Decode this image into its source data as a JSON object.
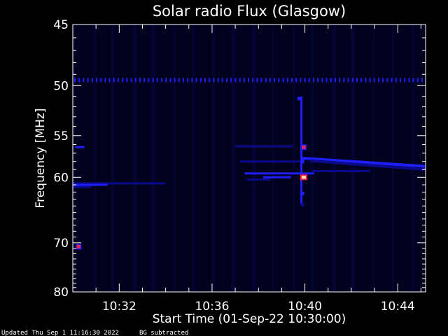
{
  "chart_data": {
    "type": "heatmap",
    "title": "Solar radio Flux (Glasgow)",
    "xlabel": "Start Time (01-Sep-22 10:30:00)",
    "ylabel": "Frequency [MHz]",
    "x_unit": "minutes after 10:30",
    "xlim": [
      0,
      15.2
    ],
    "ylim": [
      45,
      80
    ],
    "y_scale": "reciprocal",
    "x_ticks": [
      {
        "value": 2,
        "label": "10:32"
      },
      {
        "value": 6,
        "label": "10:36"
      },
      {
        "value": 10,
        "label": "10:40"
      },
      {
        "value": 14,
        "label": "10:44"
      }
    ],
    "y_ticks": [
      {
        "value": 45,
        "label": "45"
      },
      {
        "value": 50,
        "label": "50"
      },
      {
        "value": 55,
        "label": "55"
      },
      {
        "value": 60,
        "label": "60"
      },
      {
        "value": 70,
        "label": "70"
      },
      {
        "value": 80,
        "label": "80"
      }
    ],
    "y_minor_ticks": [
      46,
      47,
      48,
      49,
      51,
      52,
      53,
      54,
      56,
      57,
      58,
      59,
      61,
      62,
      63,
      64,
      65,
      66,
      67,
      68,
      69,
      71,
      72,
      73,
      74,
      75,
      76,
      77,
      78,
      79
    ],
    "x_minor_ticks": [
      1,
      3,
      4,
      5,
      7,
      8,
      9,
      11,
      12,
      13,
      15
    ],
    "colors": {
      "background": "#000000",
      "plot_background": "#02021e",
      "weak": "#0a0a8c",
      "medium": "#1e1eff",
      "strong": "#ff2050",
      "peak": "#ffe0a0",
      "axis": "#ffffff"
    },
    "features": [
      {
        "kind": "band",
        "freq": 49.5,
        "t_start": 0.0,
        "t_end": 15.2,
        "intensity": "medium",
        "dashed": true
      },
      {
        "kind": "band",
        "freq": 56.3,
        "t_start": 0.1,
        "t_end": 0.5,
        "intensity": "medium"
      },
      {
        "kind": "band",
        "freq": 60.8,
        "t_start": 0.0,
        "t_end": 4.0,
        "intensity": "weak"
      },
      {
        "kind": "band",
        "freq": 61.0,
        "t_start": 0.0,
        "t_end": 1.5,
        "intensity": "medium"
      },
      {
        "kind": "band",
        "freq": 61.3,
        "t_start": 0.0,
        "t_end": 0.8,
        "intensity": "weak"
      },
      {
        "kind": "spot",
        "freq": 70.7,
        "t": 0.25,
        "intensity": "strong"
      },
      {
        "kind": "band",
        "freq": 56.2,
        "t_start": 7.0,
        "t_end": 9.5,
        "intensity": "weak"
      },
      {
        "kind": "band",
        "freq": 58.0,
        "t_start": 7.2,
        "t_end": 9.9,
        "intensity": "weak"
      },
      {
        "kind": "band",
        "freq": 59.5,
        "t_start": 7.4,
        "t_end": 10.4,
        "intensity": "medium"
      },
      {
        "kind": "band",
        "freq": 60.0,
        "t_start": 8.2,
        "t_end": 9.4,
        "intensity": "medium"
      },
      {
        "kind": "band",
        "freq": 59.2,
        "t_start": 10.3,
        "t_end": 12.8,
        "intensity": "weak"
      },
      {
        "kind": "band",
        "freq": 60.3,
        "t_start": 7.5,
        "t_end": 8.5,
        "intensity": "weak"
      },
      {
        "kind": "drift",
        "freq_start": 57.6,
        "freq_end": 58.6,
        "t_start": 9.9,
        "t_end": 15.2,
        "intensity": "medium"
      },
      {
        "kind": "drift",
        "freq_start": 57.9,
        "freq_end": 59.0,
        "t_start": 10.2,
        "t_end": 15.2,
        "intensity": "weak"
      },
      {
        "kind": "vline",
        "t": 9.85,
        "freq_start": 51.0,
        "freq_end": 63.8,
        "intensity": "medium"
      },
      {
        "kind": "spot",
        "freq": 56.3,
        "t": 9.95,
        "intensity": "strong"
      },
      {
        "kind": "spot",
        "freq": 60.0,
        "t": 9.95,
        "intensity": "peak"
      },
      {
        "kind": "spot",
        "freq": 58.0,
        "t": 9.9,
        "intensity": "medium"
      },
      {
        "kind": "spot",
        "freq": 51.2,
        "t": 9.75,
        "intensity": "medium"
      },
      {
        "kind": "spot",
        "freq": 62.2,
        "t": 9.9,
        "intensity": "medium"
      },
      {
        "kind": "spot",
        "freq": 63.8,
        "t": 9.9,
        "intensity": "weak"
      }
    ]
  },
  "footer": {
    "updated": "Updated Thu Sep  1 11:16:30 2022",
    "note": "BG subtracted"
  }
}
